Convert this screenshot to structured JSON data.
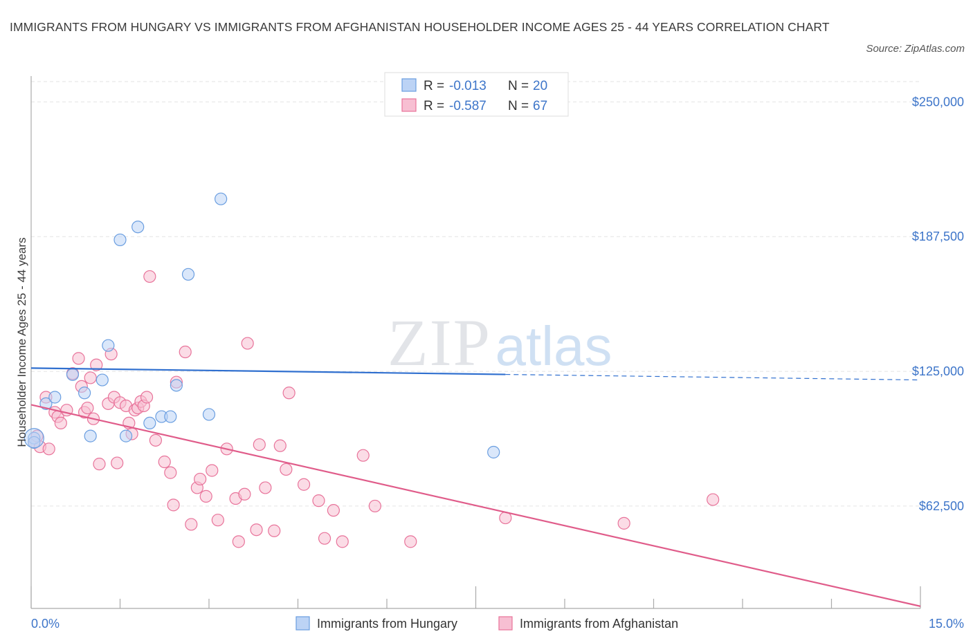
{
  "title": "IMMIGRANTS FROM HUNGARY VS IMMIGRANTS FROM AFGHANISTAN HOUSEHOLDER INCOME AGES 25 - 44 YEARS CORRELATION CHART",
  "source": "Source: ZipAtlas.com",
  "watermark": {
    "zip": "ZIP",
    "atlas": "atlas"
  },
  "colors": {
    "hungary": "#6a9ee0",
    "hungary_fill": "#bcd3f5",
    "afghanistan": "#e8739a",
    "afghanistan_fill": "#f7bfd2",
    "axis_text": "#3d75c9"
  },
  "legend": {
    "hungary": {
      "r_label": "R =",
      "r_value": "-0.013",
      "n_label": "N =",
      "n_value": "20"
    },
    "afghanistan": {
      "r_label": "R =",
      "r_value": "-0.587",
      "n_label": "N =",
      "n_value": "67"
    }
  },
  "chart_data": {
    "type": "scatter",
    "xlabel": "",
    "ylabel": "Householder Income Ages 25 - 44 years",
    "xlim": [
      0,
      15
    ],
    "ylim": [
      15000,
      262000
    ],
    "x_tick_labels": [
      "0.0%",
      "15.0%"
    ],
    "y_ticks": [
      62500,
      125000,
      187500,
      250000
    ],
    "y_tick_labels": [
      "$62,500",
      "$125,000",
      "$187,500",
      "$250,000"
    ],
    "grid": true,
    "legend_position": "top-center",
    "series": [
      {
        "name": "Immigrants from Hungary",
        "points": [
          [
            0.05,
            94000
          ],
          [
            0.25,
            110000
          ],
          [
            0.4,
            113000
          ],
          [
            0.7,
            123500
          ],
          [
            0.9,
            115000
          ],
          [
            1.0,
            95000
          ],
          [
            1.2,
            121000
          ],
          [
            1.3,
            137000
          ],
          [
            1.5,
            186000
          ],
          [
            1.6,
            95000
          ],
          [
            1.8,
            192000
          ],
          [
            2.0,
            101000
          ],
          [
            2.2,
            104000
          ],
          [
            2.35,
            104000
          ],
          [
            2.45,
            118500
          ],
          [
            2.65,
            170000
          ],
          [
            3.0,
            105000
          ],
          [
            3.2,
            205000
          ],
          [
            7.8,
            87500
          ],
          [
            0.05,
            92000
          ]
        ],
        "trend": {
          "x0": 0,
          "y0": 126500,
          "x1": 15,
          "y1": 121000,
          "solid_until": 8.0
        }
      },
      {
        "name": "Immigrants from Afghanistan",
        "points": [
          [
            0.05,
            92000
          ],
          [
            0.15,
            90000
          ],
          [
            0.25,
            113000
          ],
          [
            0.3,
            89000
          ],
          [
            0.4,
            106000
          ],
          [
            0.45,
            104000
          ],
          [
            0.5,
            101000
          ],
          [
            0.6,
            107000
          ],
          [
            0.7,
            124000
          ],
          [
            0.8,
            131000
          ],
          [
            0.85,
            118000
          ],
          [
            0.9,
            106000
          ],
          [
            0.95,
            108000
          ],
          [
            1.0,
            122000
          ],
          [
            1.05,
            103000
          ],
          [
            1.1,
            128000
          ],
          [
            1.15,
            82000
          ],
          [
            1.3,
            110000
          ],
          [
            1.35,
            133000
          ],
          [
            1.4,
            113000
          ],
          [
            1.45,
            82500
          ],
          [
            1.5,
            110500
          ],
          [
            1.6,
            109000
          ],
          [
            1.65,
            101000
          ],
          [
            1.7,
            96000
          ],
          [
            1.75,
            107000
          ],
          [
            1.8,
            108000
          ],
          [
            1.85,
            111000
          ],
          [
            1.9,
            109000
          ],
          [
            1.95,
            113000
          ],
          [
            2.0,
            169000
          ],
          [
            2.1,
            93000
          ],
          [
            2.25,
            83000
          ],
          [
            2.35,
            78000
          ],
          [
            2.4,
            63000
          ],
          [
            2.45,
            120000
          ],
          [
            2.6,
            134000
          ],
          [
            2.7,
            54000
          ],
          [
            2.8,
            71000
          ],
          [
            2.85,
            75000
          ],
          [
            2.95,
            67000
          ],
          [
            3.05,
            79000
          ],
          [
            3.15,
            56000
          ],
          [
            3.3,
            89000
          ],
          [
            3.45,
            66000
          ],
          [
            3.5,
            46000
          ],
          [
            3.6,
            68000
          ],
          [
            3.65,
            138000
          ],
          [
            3.8,
            51500
          ],
          [
            3.85,
            91000
          ],
          [
            3.95,
            71000
          ],
          [
            4.1,
            51000
          ],
          [
            4.2,
            90500
          ],
          [
            4.3,
            79500
          ],
          [
            4.35,
            115000
          ],
          [
            4.6,
            72500
          ],
          [
            4.85,
            65000
          ],
          [
            4.95,
            47500
          ],
          [
            5.1,
            60500
          ],
          [
            5.25,
            46000
          ],
          [
            5.6,
            86000
          ],
          [
            5.8,
            62500
          ],
          [
            6.4,
            46000
          ],
          [
            8.0,
            57000
          ],
          [
            10.0,
            54500
          ],
          [
            11.5,
            65500
          ],
          [
            0.1,
            95000
          ]
        ],
        "trend": {
          "x0": 0,
          "y0": 109500,
          "x1": 15,
          "y1": 16000
        }
      }
    ]
  }
}
